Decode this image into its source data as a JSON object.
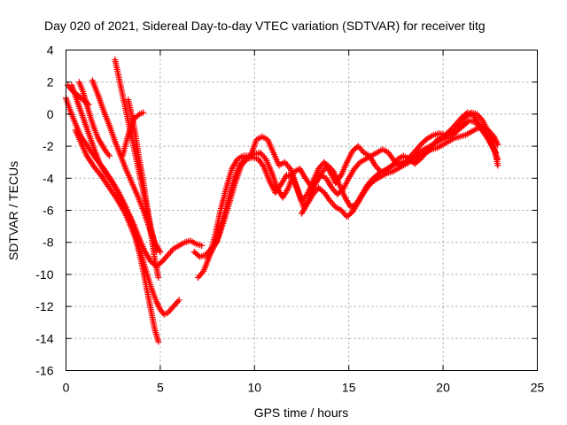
{
  "chart_data": {
    "type": "scatter",
    "title": "Day 020 of 2021, Sidereal Day-to-day VTEC variation (SDTVAR) for receiver titg",
    "xlabel": "GPS time / hours",
    "ylabel": "SDTVAR / TECUs",
    "xlim": [
      0,
      25
    ],
    "ylim": [
      -16,
      4
    ],
    "xticks": [
      0,
      5,
      10,
      15,
      20,
      25
    ],
    "yticks": [
      -16,
      -14,
      -12,
      -10,
      -8,
      -6,
      -4,
      -2,
      0,
      2,
      4
    ],
    "grid": true,
    "legend": "none",
    "marker": "plus",
    "marker_color": "#ff0000",
    "series": [
      {
        "x": [
          0.0,
          0.2,
          0.5,
          0.8,
          1.2,
          1.6,
          2.0,
          2.4,
          2.8,
          3.1,
          3.4,
          3.6,
          3.8,
          4.0,
          4.2,
          4.4,
          4.6,
          4.8,
          5.0,
          5.2,
          5.4,
          5.7,
          6.0
        ],
        "y": [
          1.0,
          0.3,
          -0.6,
          -1.4,
          -2.1,
          -2.8,
          -3.4,
          -4.1,
          -4.9,
          -5.6,
          -6.4,
          -7.2,
          -8.0,
          -8.8,
          -9.6,
          -10.4,
          -11.1,
          -11.7,
          -12.2,
          -12.5,
          -12.4,
          -12.0,
          -11.6
        ]
      },
      {
        "x": [
          0.5,
          0.8,
          1.1,
          1.5,
          1.9,
          2.3,
          2.7,
          3.1,
          3.4,
          3.7,
          3.9,
          4.1,
          4.3,
          4.5,
          4.7,
          4.9
        ],
        "y": [
          -1.0,
          -1.8,
          -2.6,
          -3.3,
          -3.9,
          -4.6,
          -5.3,
          -6.1,
          -6.9,
          -7.8,
          -8.7,
          -9.8,
          -11.0,
          -12.2,
          -13.4,
          -14.2
        ]
      },
      {
        "x": [
          0.3,
          0.6,
          0.9,
          1.2,
          1.5,
          1.8,
          2.1,
          2.4,
          2.7,
          3.0,
          3.3,
          3.6,
          3.9,
          4.2,
          4.5,
          4.8,
          5.1,
          5.4,
          5.7,
          6.0,
          6.3,
          6.6,
          6.9,
          7.2
        ],
        "y": [
          1.8,
          0.8,
          -0.2,
          -1.2,
          -2.2,
          -3.1,
          -3.7,
          -4.2,
          -4.8,
          -5.5,
          -6.2,
          -6.9,
          -7.8,
          -8.6,
          -9.2,
          -9.5,
          -9.2,
          -8.8,
          -8.4,
          -8.2,
          -8.0,
          -7.9,
          -8.1,
          -8.2
        ]
      },
      {
        "x": [
          1.4,
          1.7,
          2.0,
          2.3,
          2.6,
          2.9,
          3.2,
          3.5,
          3.8,
          4.1,
          4.4,
          4.7,
          5.0
        ],
        "y": [
          2.1,
          1.2,
          0.2,
          -0.7,
          -1.7,
          -2.6,
          -3.5,
          -4.3,
          -5.1,
          -6.0,
          -7.0,
          -8.0,
          -8.6
        ]
      },
      {
        "x": [
          2.6,
          2.8,
          3.0,
          3.2,
          3.4,
          3.6,
          3.8,
          4.0,
          4.2,
          4.4,
          4.6,
          4.8
        ],
        "y": [
          3.4,
          2.3,
          1.2,
          0.1,
          -1.0,
          -2.1,
          -3.2,
          -4.3,
          -5.4,
          -6.5,
          -7.6,
          -8.6
        ]
      },
      {
        "x": [
          3.3,
          3.5,
          3.7,
          3.9,
          4.1,
          4.3,
          4.5,
          4.7,
          4.9
        ],
        "y": [
          0.9,
          -0.1,
          -1.4,
          -2.9,
          -4.2,
          -5.8,
          -7.4,
          -9.0,
          -10.2
        ]
      },
      {
        "x": [
          3.0,
          3.3,
          3.6,
          3.9,
          4.1
        ],
        "y": [
          -2.6,
          -1.3,
          -0.3,
          0.0,
          0.1
        ]
      },
      {
        "x": [
          7.0,
          7.3,
          7.6,
          7.9,
          8.2,
          8.5,
          8.8,
          9.1,
          9.4,
          9.7,
          10.0,
          10.3,
          10.6,
          10.9,
          11.2,
          11.5,
          11.8,
          12.1,
          12.4,
          12.7,
          13.0,
          13.3,
          13.6,
          13.9,
          14.2,
          14.5,
          14.8,
          15.1,
          15.4,
          15.7,
          16.0,
          16.3,
          16.6,
          16.9,
          17.2,
          17.5,
          17.8,
          18.1,
          18.4,
          18.7,
          19.0,
          19.3,
          19.6,
          19.9,
          20.2,
          20.5,
          20.8,
          21.1,
          21.4,
          21.7,
          22.0,
          22.3,
          22.6,
          22.9
        ],
        "y": [
          -10.2,
          -9.8,
          -8.9,
          -7.6,
          -6.0,
          -4.6,
          -3.4,
          -2.8,
          -2.6,
          -2.6,
          -2.5,
          -2.4,
          -2.8,
          -3.6,
          -4.6,
          -5.2,
          -4.6,
          -3.6,
          -3.4,
          -4.0,
          -4.5,
          -4.2,
          -3.6,
          -3.2,
          -3.6,
          -4.4,
          -5.2,
          -5.8,
          -5.6,
          -5.0,
          -4.4,
          -4.0,
          -3.7,
          -3.5,
          -3.3,
          -3.1,
          -3.0,
          -2.9,
          -2.7,
          -2.4,
          -2.2,
          -2.0,
          -1.8,
          -1.6,
          -1.5,
          -1.3,
          -1.0,
          -0.7,
          -0.4,
          -0.5,
          -0.9,
          -1.4,
          -2.0,
          -2.8
        ]
      },
      {
        "x": [
          7.5,
          7.8,
          8.1,
          8.4,
          8.7,
          9.0,
          9.3,
          9.6,
          9.9,
          10.2,
          10.5,
          10.8,
          11.1,
          11.4,
          11.7,
          12.0,
          12.3,
          12.6,
          12.9,
          13.2,
          13.5,
          13.8,
          14.1,
          14.4,
          14.7,
          15.0,
          15.3,
          15.6,
          15.9,
          16.2,
          16.5,
          16.8,
          17.1,
          17.4,
          17.7,
          18.0,
          18.3,
          18.6,
          18.9,
          19.2,
          19.5,
          19.8,
          20.1,
          20.4,
          20.7,
          21.0,
          21.3,
          21.6,
          21.9,
          22.2,
          22.5,
          22.8
        ],
        "y": [
          -9.0,
          -8.4,
          -7.6,
          -6.6,
          -5.4,
          -4.2,
          -3.2,
          -2.8,
          -2.7,
          -2.8,
          -3.3,
          -4.2,
          -4.9,
          -4.4,
          -3.8,
          -3.9,
          -4.8,
          -5.8,
          -5.3,
          -4.4,
          -3.8,
          -4.0,
          -4.6,
          -5.0,
          -4.7,
          -4.0,
          -3.4,
          -3.0,
          -2.8,
          -2.6,
          -2.4,
          -2.2,
          -2.4,
          -2.9,
          -3.2,
          -3.0,
          -2.6,
          -2.2,
          -1.8,
          -1.5,
          -1.3,
          -1.2,
          -1.3,
          -1.0,
          -0.6,
          -0.2,
          0.1,
          -0.1,
          -0.6,
          -1.1,
          -1.7,
          -2.4
        ]
      },
      {
        "x": [
          6.8,
          7.1,
          7.4,
          7.7,
          8.0,
          8.3,
          8.6,
          8.9,
          9.2,
          9.5,
          9.8,
          10.1,
          10.4,
          10.7,
          11.0,
          11.3,
          11.6,
          11.9,
          12.2,
          12.5,
          12.8,
          13.1,
          13.4,
          13.7,
          14.0,
          14.3,
          14.6,
          14.9,
          15.2,
          15.5,
          15.8,
          16.1,
          16.4,
          16.7,
          17.0,
          17.3,
          17.6,
          17.9,
          18.2,
          18.5,
          18.8,
          19.1,
          19.4,
          19.7,
          20.0,
          20.3,
          20.6,
          20.9,
          21.2,
          21.5,
          21.8,
          22.1,
          22.4,
          22.7,
          22.9
        ],
        "y": [
          -8.6,
          -8.9,
          -8.8,
          -8.4,
          -8.0,
          -6.6,
          -5.4,
          -4.1,
          -3.2,
          -2.8,
          -2.6,
          -1.6,
          -1.4,
          -1.6,
          -2.4,
          -3.2,
          -3.0,
          -3.4,
          -4.4,
          -5.4,
          -5.0,
          -4.2,
          -3.4,
          -3.0,
          -3.6,
          -4.3,
          -3.8,
          -3.0,
          -2.3,
          -2.0,
          -2.4,
          -2.6,
          -3.2,
          -3.6,
          -3.5,
          -3.2,
          -2.8,
          -2.6,
          -2.8,
          -3.1,
          -2.8,
          -2.4,
          -2.0,
          -1.6,
          -1.4,
          -1.2,
          -1.0,
          -0.6,
          -0.2,
          0.1,
          0.0,
          -0.4,
          -1.1,
          -2.0,
          -3.2
        ]
      },
      {
        "x": [
          12.5,
          12.8,
          13.1,
          13.4,
          13.7,
          14.0,
          14.3,
          14.6,
          14.9,
          15.2,
          15.5,
          15.8,
          16.1,
          16.4,
          16.7,
          17.0,
          17.3,
          17.6,
          17.9,
          18.2,
          18.5,
          18.8,
          19.1,
          19.4,
          19.7,
          20.0,
          20.3,
          20.6,
          20.9,
          21.2,
          21.5,
          21.8,
          22.1,
          22.4,
          22.7,
          22.9
        ],
        "y": [
          -6.2,
          -5.6,
          -5.0,
          -4.6,
          -4.9,
          -5.4,
          -5.8,
          -6.0,
          -6.4,
          -6.1,
          -5.5,
          -4.9,
          -4.4,
          -4.1,
          -3.9,
          -3.7,
          -3.6,
          -3.4,
          -3.2,
          -3.0,
          -2.8,
          -2.6,
          -2.4,
          -2.2,
          -2.1,
          -1.9,
          -1.7,
          -1.5,
          -1.4,
          -1.3,
          -1.1,
          -0.9,
          -0.8,
          -1.0,
          -1.4,
          -1.9
        ]
      },
      {
        "x": [
          0.1,
          0.3,
          0.6,
          0.9,
          1.2
        ],
        "y": [
          1.8,
          1.5,
          1.2,
          0.9,
          0.6
        ]
      },
      {
        "x": [
          0.7,
          0.9,
          1.1,
          1.3,
          1.5,
          1.7,
          1.9,
          2.1,
          2.3
        ],
        "y": [
          2.0,
          1.4,
          0.6,
          -0.2,
          -0.9,
          -1.5,
          -1.9,
          -2.3,
          -2.6
        ]
      }
    ]
  }
}
